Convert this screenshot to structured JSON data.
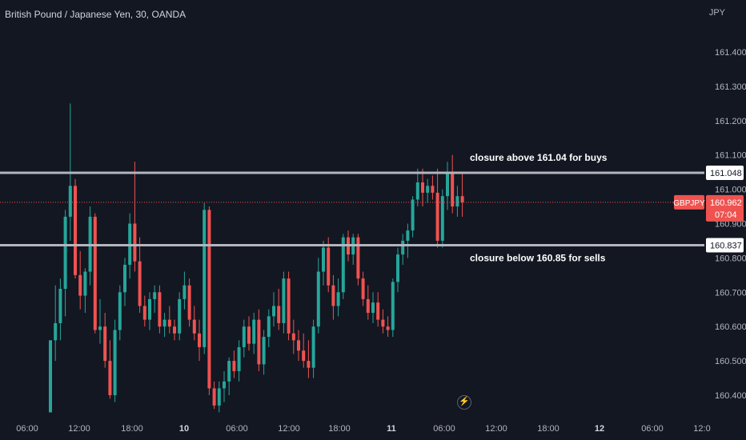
{
  "header": {
    "symbol_title": "British Pound / Japanese Yen, 30, OANDA",
    "currency": "JPY"
  },
  "colors": {
    "background": "#131722",
    "up": "#26a69a",
    "down": "#ef5350",
    "level_line": "#b2b5be",
    "axis_text": "#b2b5be",
    "price_line": "#ef5350"
  },
  "icons": {
    "realtime": "lightning-icon"
  },
  "chart_data": {
    "type": "candlestick",
    "y_ticks": [
      "161.400",
      "161.300",
      "161.200",
      "161.100",
      "161.000",
      "160.900",
      "160.800",
      "160.700",
      "160.600",
      "160.500",
      "160.400"
    ],
    "y_tick_values": [
      161.4,
      161.3,
      161.2,
      161.1,
      161.0,
      160.9,
      160.8,
      160.7,
      160.6,
      160.5,
      160.4
    ],
    "x_ticks": [
      "06:00",
      "12:00",
      "18:00",
      "10",
      "06:00",
      "12:00",
      "18:00",
      "11",
      "06:00",
      "12:00",
      "18:00",
      "12",
      "06:00",
      "12:0"
    ],
    "ylim": [
      160.35,
      161.5
    ],
    "horizontal_levels": [
      {
        "price": 161.048,
        "label": "161.048",
        "annotation": "closure above 161.04 for buys"
      },
      {
        "price": 160.837,
        "label": "160.837",
        "annotation": "closure below 160.85 for sells"
      }
    ],
    "current_price": {
      "symbol": "GBPJPY",
      "price": 160.962,
      "label": "160.962",
      "countdown": "07:04"
    },
    "candles": [
      {
        "o": 160.35,
        "h": 160.56,
        "l": 160.35,
        "c": 160.56
      },
      {
        "o": 160.56,
        "h": 160.72,
        "l": 160.5,
        "c": 160.61
      },
      {
        "o": 160.61,
        "h": 160.74,
        "l": 160.56,
        "c": 160.71
      },
      {
        "o": 160.71,
        "h": 160.94,
        "l": 160.63,
        "c": 160.92
      },
      {
        "o": 160.92,
        "h": 161.25,
        "l": 160.85,
        "c": 161.01
      },
      {
        "o": 161.01,
        "h": 161.03,
        "l": 160.74,
        "c": 160.75
      },
      {
        "o": 160.75,
        "h": 160.82,
        "l": 160.65,
        "c": 160.69
      },
      {
        "o": 160.69,
        "h": 160.77,
        "l": 160.64,
        "c": 160.76
      },
      {
        "o": 160.76,
        "h": 160.95,
        "l": 160.72,
        "c": 160.92
      },
      {
        "o": 160.92,
        "h": 160.93,
        "l": 160.58,
        "c": 160.59
      },
      {
        "o": 160.59,
        "h": 160.68,
        "l": 160.55,
        "c": 160.6
      },
      {
        "o": 160.6,
        "h": 160.64,
        "l": 160.48,
        "c": 160.5
      },
      {
        "o": 160.5,
        "h": 160.56,
        "l": 160.39,
        "c": 160.4
      },
      {
        "o": 160.4,
        "h": 160.62,
        "l": 160.38,
        "c": 160.59
      },
      {
        "o": 160.59,
        "h": 160.72,
        "l": 160.56,
        "c": 160.7
      },
      {
        "o": 160.7,
        "h": 160.8,
        "l": 160.66,
        "c": 160.78
      },
      {
        "o": 160.78,
        "h": 160.93,
        "l": 160.74,
        "c": 160.9
      },
      {
        "o": 160.9,
        "h": 161.08,
        "l": 160.76,
        "c": 160.79
      },
      {
        "o": 160.79,
        "h": 160.86,
        "l": 160.64,
        "c": 160.66
      },
      {
        "o": 160.66,
        "h": 160.69,
        "l": 160.6,
        "c": 160.62
      },
      {
        "o": 160.62,
        "h": 160.7,
        "l": 160.59,
        "c": 160.68
      },
      {
        "o": 160.68,
        "h": 160.72,
        "l": 160.64,
        "c": 160.7
      },
      {
        "o": 160.7,
        "h": 160.72,
        "l": 160.58,
        "c": 160.6
      },
      {
        "o": 160.6,
        "h": 160.64,
        "l": 160.57,
        "c": 160.62
      },
      {
        "o": 160.62,
        "h": 160.66,
        "l": 160.58,
        "c": 160.6
      },
      {
        "o": 160.6,
        "h": 160.62,
        "l": 160.56,
        "c": 160.58
      },
      {
        "o": 160.58,
        "h": 160.7,
        "l": 160.56,
        "c": 160.68
      },
      {
        "o": 160.68,
        "h": 160.76,
        "l": 160.65,
        "c": 160.72
      },
      {
        "o": 160.72,
        "h": 160.74,
        "l": 160.6,
        "c": 160.62
      },
      {
        "o": 160.62,
        "h": 160.66,
        "l": 160.56,
        "c": 160.58
      },
      {
        "o": 160.58,
        "h": 160.62,
        "l": 160.5,
        "c": 160.54
      },
      {
        "o": 160.54,
        "h": 160.96,
        "l": 160.52,
        "c": 160.94
      },
      {
        "o": 160.94,
        "h": 160.95,
        "l": 160.4,
        "c": 160.42
      },
      {
        "o": 160.42,
        "h": 160.44,
        "l": 160.36,
        "c": 160.37
      },
      {
        "o": 160.37,
        "h": 160.44,
        "l": 160.35,
        "c": 160.42
      },
      {
        "o": 160.42,
        "h": 160.47,
        "l": 160.38,
        "c": 160.44
      },
      {
        "o": 160.44,
        "h": 160.51,
        "l": 160.4,
        "c": 160.5
      },
      {
        "o": 160.5,
        "h": 160.53,
        "l": 160.45,
        "c": 160.47
      },
      {
        "o": 160.47,
        "h": 160.56,
        "l": 160.44,
        "c": 160.54
      },
      {
        "o": 160.54,
        "h": 160.62,
        "l": 160.51,
        "c": 160.6
      },
      {
        "o": 160.6,
        "h": 160.63,
        "l": 160.53,
        "c": 160.55
      },
      {
        "o": 160.55,
        "h": 160.64,
        "l": 160.52,
        "c": 160.62
      },
      {
        "o": 160.62,
        "h": 160.65,
        "l": 160.47,
        "c": 160.49
      },
      {
        "o": 160.49,
        "h": 160.59,
        "l": 160.46,
        "c": 160.57
      },
      {
        "o": 160.57,
        "h": 160.65,
        "l": 160.54,
        "c": 160.63
      },
      {
        "o": 160.63,
        "h": 160.7,
        "l": 160.6,
        "c": 160.66
      },
      {
        "o": 160.66,
        "h": 160.71,
        "l": 160.59,
        "c": 160.61
      },
      {
        "o": 160.61,
        "h": 160.76,
        "l": 160.58,
        "c": 160.74
      },
      {
        "o": 160.74,
        "h": 160.76,
        "l": 160.56,
        "c": 160.58
      },
      {
        "o": 160.58,
        "h": 160.62,
        "l": 160.52,
        "c": 160.56
      },
      {
        "o": 160.56,
        "h": 160.59,
        "l": 160.5,
        "c": 160.53
      },
      {
        "o": 160.53,
        "h": 160.58,
        "l": 160.48,
        "c": 160.5
      },
      {
        "o": 160.5,
        "h": 160.56,
        "l": 160.45,
        "c": 160.48
      },
      {
        "o": 160.48,
        "h": 160.62,
        "l": 160.45,
        "c": 160.6
      },
      {
        "o": 160.6,
        "h": 160.8,
        "l": 160.58,
        "c": 160.76
      },
      {
        "o": 160.76,
        "h": 160.85,
        "l": 160.72,
        "c": 160.83
      },
      {
        "o": 160.83,
        "h": 160.86,
        "l": 160.7,
        "c": 160.72
      },
      {
        "o": 160.72,
        "h": 160.75,
        "l": 160.62,
        "c": 160.66
      },
      {
        "o": 160.66,
        "h": 160.74,
        "l": 160.63,
        "c": 160.7
      },
      {
        "o": 160.7,
        "h": 160.87,
        "l": 160.68,
        "c": 160.86
      },
      {
        "o": 160.86,
        "h": 160.88,
        "l": 160.79,
        "c": 160.81
      },
      {
        "o": 160.81,
        "h": 160.87,
        "l": 160.78,
        "c": 160.86
      },
      {
        "o": 160.86,
        "h": 160.87,
        "l": 160.72,
        "c": 160.74
      },
      {
        "o": 160.74,
        "h": 160.76,
        "l": 160.66,
        "c": 160.68
      },
      {
        "o": 160.68,
        "h": 160.72,
        "l": 160.62,
        "c": 160.64
      },
      {
        "o": 160.64,
        "h": 160.7,
        "l": 160.61,
        "c": 160.67
      },
      {
        "o": 160.67,
        "h": 160.7,
        "l": 160.6,
        "c": 160.62
      },
      {
        "o": 160.62,
        "h": 160.65,
        "l": 160.58,
        "c": 160.6
      },
      {
        "o": 160.6,
        "h": 160.63,
        "l": 160.57,
        "c": 160.59
      },
      {
        "o": 160.59,
        "h": 160.74,
        "l": 160.57,
        "c": 160.73
      },
      {
        "o": 160.73,
        "h": 160.83,
        "l": 160.7,
        "c": 160.81
      },
      {
        "o": 160.81,
        "h": 160.87,
        "l": 160.78,
        "c": 160.85
      },
      {
        "o": 160.85,
        "h": 160.9,
        "l": 160.8,
        "c": 160.88
      },
      {
        "o": 160.88,
        "h": 160.98,
        "l": 160.86,
        "c": 160.97
      },
      {
        "o": 160.97,
        "h": 161.06,
        "l": 160.95,
        "c": 161.02
      },
      {
        "o": 161.02,
        "h": 161.06,
        "l": 160.95,
        "c": 160.99
      },
      {
        "o": 160.99,
        "h": 161.03,
        "l": 160.96,
        "c": 161.01
      },
      {
        "o": 161.01,
        "h": 161.04,
        "l": 160.97,
        "c": 160.99
      },
      {
        "o": 160.99,
        "h": 161.06,
        "l": 160.83,
        "c": 160.85
      },
      {
        "o": 160.85,
        "h": 161.0,
        "l": 160.83,
        "c": 160.98
      },
      {
        "o": 160.98,
        "h": 161.08,
        "l": 160.94,
        "c": 161.05
      },
      {
        "o": 161.05,
        "h": 161.1,
        "l": 160.93,
        "c": 160.95
      },
      {
        "o": 160.95,
        "h": 161.01,
        "l": 160.92,
        "c": 160.98
      },
      {
        "o": 160.98,
        "h": 161.05,
        "l": 160.92,
        "c": 160.962
      }
    ]
  }
}
